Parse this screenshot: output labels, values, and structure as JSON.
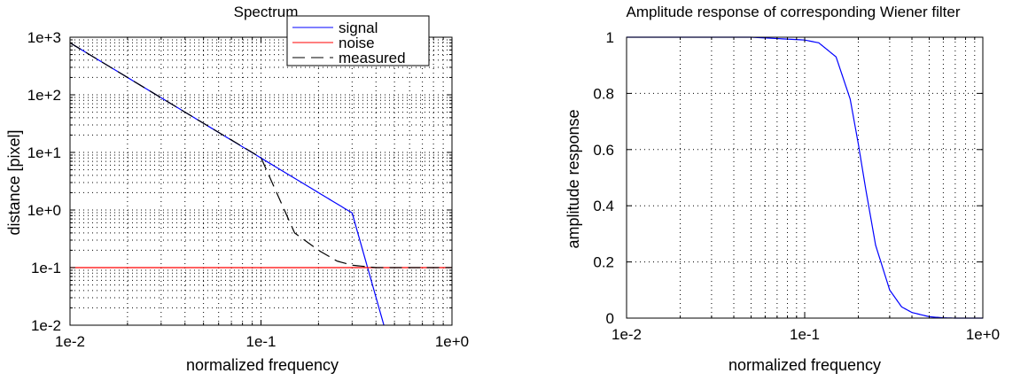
{
  "chart_data": [
    {
      "type": "line",
      "title": "Spectrum",
      "xlabel": "normalized frequency",
      "ylabel": "distance [pixel]",
      "xscale": "log",
      "yscale": "log",
      "xlim": [
        0.01,
        1.0
      ],
      "ylim": [
        0.01,
        1000
      ],
      "xtick_labels": [
        "1e-2",
        "1e-1",
        "1e+0"
      ],
      "ytick_labels": [
        "1e+3",
        "1e+2",
        "1e+1",
        "1e+0",
        "1e-1",
        "1e-2"
      ],
      "grid": true,
      "legend_position": "top-right",
      "series": [
        {
          "name": "signal",
          "color": "#0000ff",
          "style": "solid",
          "x": [
            0.01,
            0.02,
            0.05,
            0.1,
            0.2,
            0.3,
            0.44
          ],
          "y": [
            800,
            200,
            32,
            8,
            2,
            0.89,
            0.01
          ]
        },
        {
          "name": "noise",
          "color": "#ff0000",
          "style": "solid",
          "x": [
            0.01,
            1.0
          ],
          "y": [
            0.1,
            0.1
          ]
        },
        {
          "name": "measured",
          "color": "#000000",
          "style": "dashed",
          "x": [
            0.01,
            0.02,
            0.05,
            0.1,
            0.15,
            0.2,
            0.25,
            0.3,
            0.4,
            0.5,
            0.7,
            1.0
          ],
          "y": [
            800,
            200,
            32,
            8.1,
            0.4,
            0.2,
            0.13,
            0.11,
            0.1,
            0.1,
            0.1,
            0.1
          ]
        }
      ]
    },
    {
      "type": "line",
      "title": "Amplitude response of corresponding Wiener filter",
      "xlabel": "normalized frequency",
      "ylabel": "amplitude response",
      "xscale": "log",
      "yscale": "linear",
      "xlim": [
        0.01,
        1.0
      ],
      "ylim": [
        0,
        1
      ],
      "xtick_labels": [
        "1e-2",
        "1e-1",
        "1e+0"
      ],
      "ytick_labels": [
        "1",
        "0.8",
        "0.6",
        "0.4",
        "0.2",
        "0"
      ],
      "grid": true,
      "series": [
        {
          "color": "#0000ff",
          "style": "solid",
          "x": [
            0.01,
            0.05,
            0.1,
            0.12,
            0.15,
            0.18,
            0.2,
            0.22,
            0.25,
            0.3,
            0.35,
            0.4,
            0.5,
            0.6,
            0.7,
            1.0
          ],
          "y": [
            1.0,
            1.0,
            0.99,
            0.98,
            0.93,
            0.78,
            0.62,
            0.46,
            0.26,
            0.1,
            0.04,
            0.02,
            0.005,
            0.001,
            0.0,
            0.0
          ]
        }
      ]
    }
  ]
}
